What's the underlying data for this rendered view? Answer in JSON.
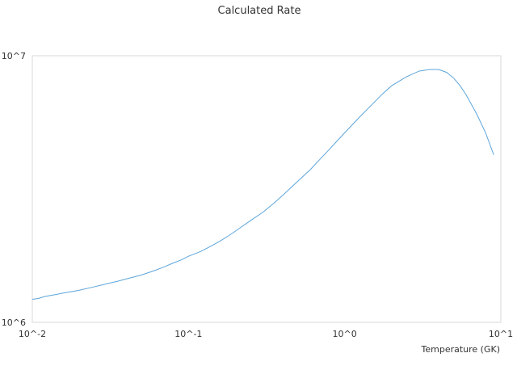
{
  "chart_data": {
    "type": "line",
    "title": "Calculated Rate",
    "xlabel": "Temperature (GK)",
    "ylabel": "",
    "x_scale": "log",
    "y_scale": "log",
    "xlim": [
      0.01,
      10
    ],
    "ylim": [
      1000000,
      10000000
    ],
    "x_tick_labels": [
      "10^-2",
      "10^-1",
      "10^0",
      "10^1"
    ],
    "y_tick_labels": [
      "10^6",
      "10^7"
    ],
    "grid": false,
    "legend": "none",
    "series": [
      {
        "color": "#5DA5DA",
        "x": [
          0.01,
          0.011,
          0.012,
          0.014,
          0.016,
          0.018,
          0.02,
          0.025,
          0.03,
          0.035,
          0.04,
          0.05,
          0.06,
          0.07,
          0.08,
          0.09,
          0.1,
          0.12,
          0.14,
          0.16,
          0.18,
          0.2,
          0.25,
          0.3,
          0.35,
          0.4,
          0.45,
          0.5,
          0.6,
          0.7,
          0.8,
          0.9,
          1.0,
          1.25,
          1.5,
          1.75,
          2.0,
          2.5,
          3.0,
          3.5,
          4.0,
          4.5,
          5.0,
          5.5,
          6.0,
          7.0,
          8.0,
          9.0
        ],
        "y": [
          1220000,
          1230000,
          1250000,
          1270000,
          1290000,
          1305000,
          1320000,
          1360000,
          1395000,
          1425000,
          1455000,
          1505000,
          1560000,
          1615000,
          1670000,
          1715000,
          1770000,
          1845000,
          1935000,
          2020000,
          2110000,
          2200000,
          2410000,
          2590000,
          2790000,
          2990000,
          3190000,
          3380000,
          3730000,
          4110000,
          4460000,
          4810000,
          5140000,
          5900000,
          6570000,
          7200000,
          7720000,
          8350000,
          8760000,
          8880000,
          8880000,
          8660000,
          8230000,
          7700000,
          7130000,
          6050000,
          5130000,
          4250000
        ]
      }
    ]
  }
}
